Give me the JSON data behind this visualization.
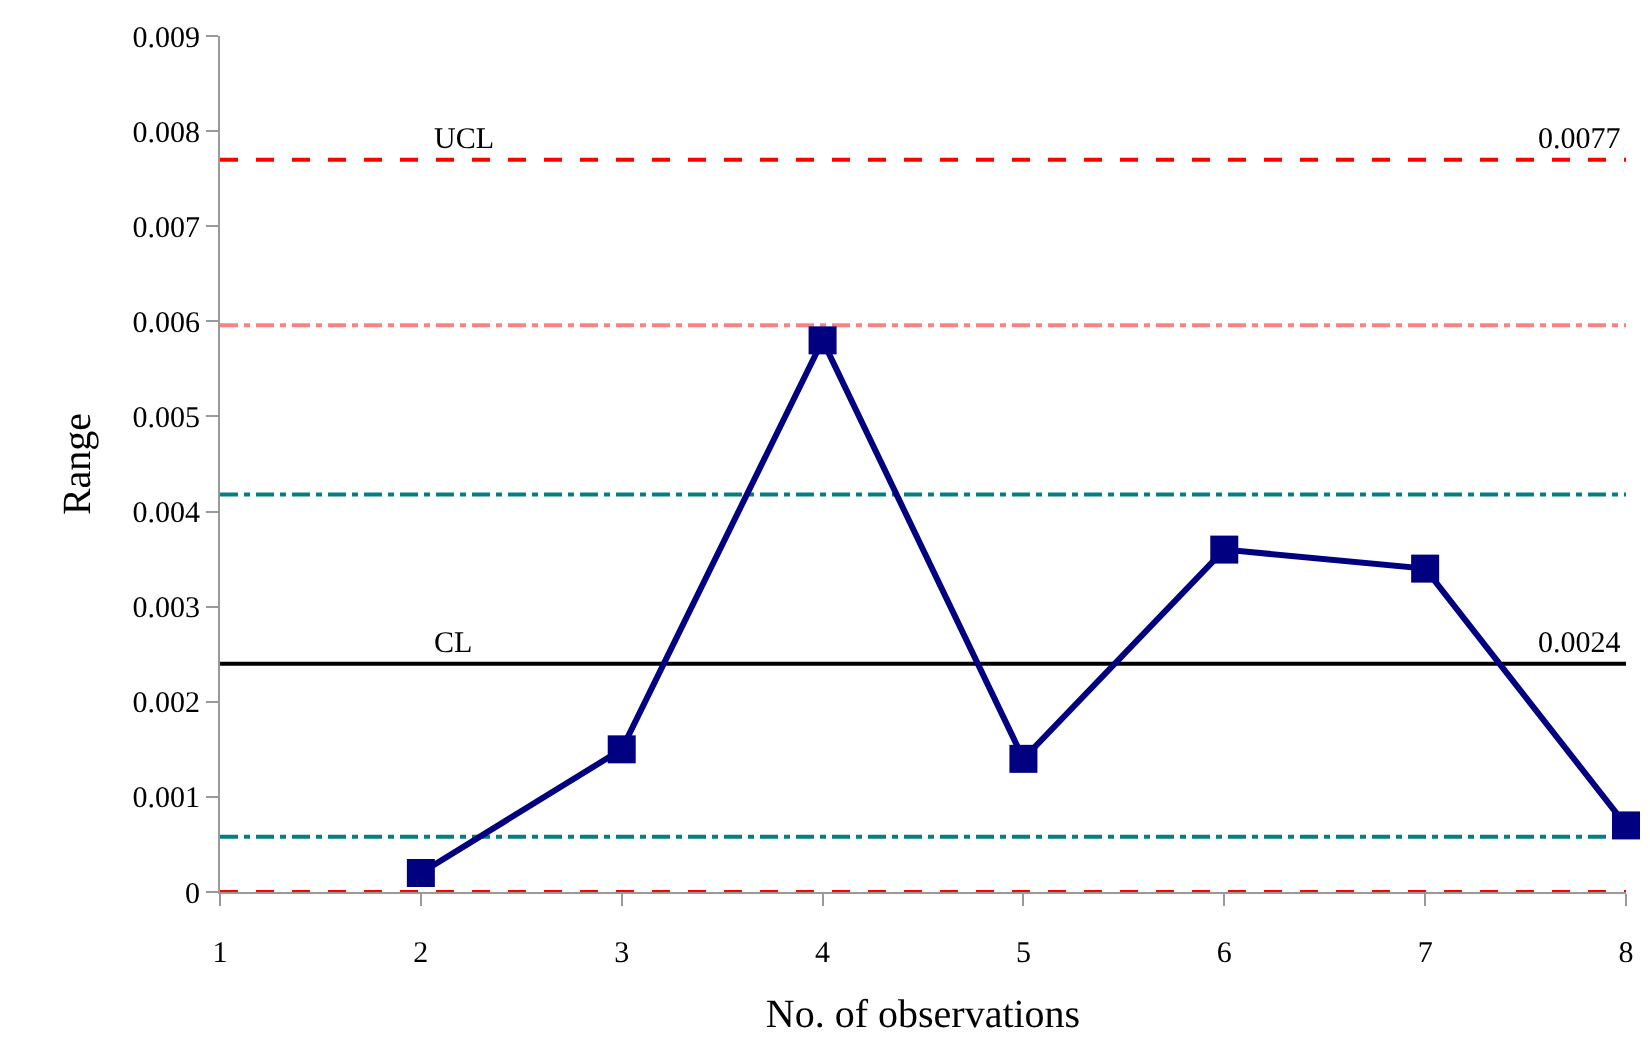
{
  "chart_data": {
    "type": "line",
    "xlabel": "No. of observations",
    "ylabel": "Range",
    "x": [
      2,
      3,
      4,
      5,
      6,
      7,
      8
    ],
    "series": [
      {
        "color": "#000080",
        "values": [
          0.0002,
          0.0015,
          0.0058,
          0.0014,
          0.0036,
          0.0034,
          0.0007
        ]
      }
    ],
    "marker": "square",
    "line_style": "solid",
    "xlim": [
      1,
      8
    ],
    "xticks": [
      1,
      2,
      3,
      4,
      5,
      6,
      7,
      8
    ],
    "ylim": [
      0,
      0.009
    ],
    "yticks": [
      0,
      0.001,
      0.002,
      0.003,
      0.004,
      0.005,
      0.006,
      0.007,
      0.008,
      0.009
    ],
    "ref_lines": [
      {
        "axis": "y",
        "value": 0.0077,
        "label": "UCL",
        "color": "#ff0000",
        "line_style": "dashed"
      },
      {
        "axis": "y",
        "value": 0.00596,
        "color": "#ff8080",
        "line_style": "dashdot"
      },
      {
        "axis": "y",
        "value": 0.00418,
        "color": "#008080",
        "line_style": "dashdot"
      },
      {
        "axis": "y",
        "value": 0.0024,
        "label": "CL",
        "color": "#000000",
        "line_style": "solid"
      },
      {
        "axis": "y",
        "value": 0.00058,
        "color": "#008080",
        "line_style": "dashdot"
      },
      {
        "axis": "y",
        "value": 0,
        "color": "#ff0000",
        "line_style": "dashed"
      }
    ],
    "annotations": [
      {
        "text": "0.0077",
        "y": 0.0077
      },
      {
        "text": "0.0024",
        "y": 0.0024
      }
    ]
  }
}
